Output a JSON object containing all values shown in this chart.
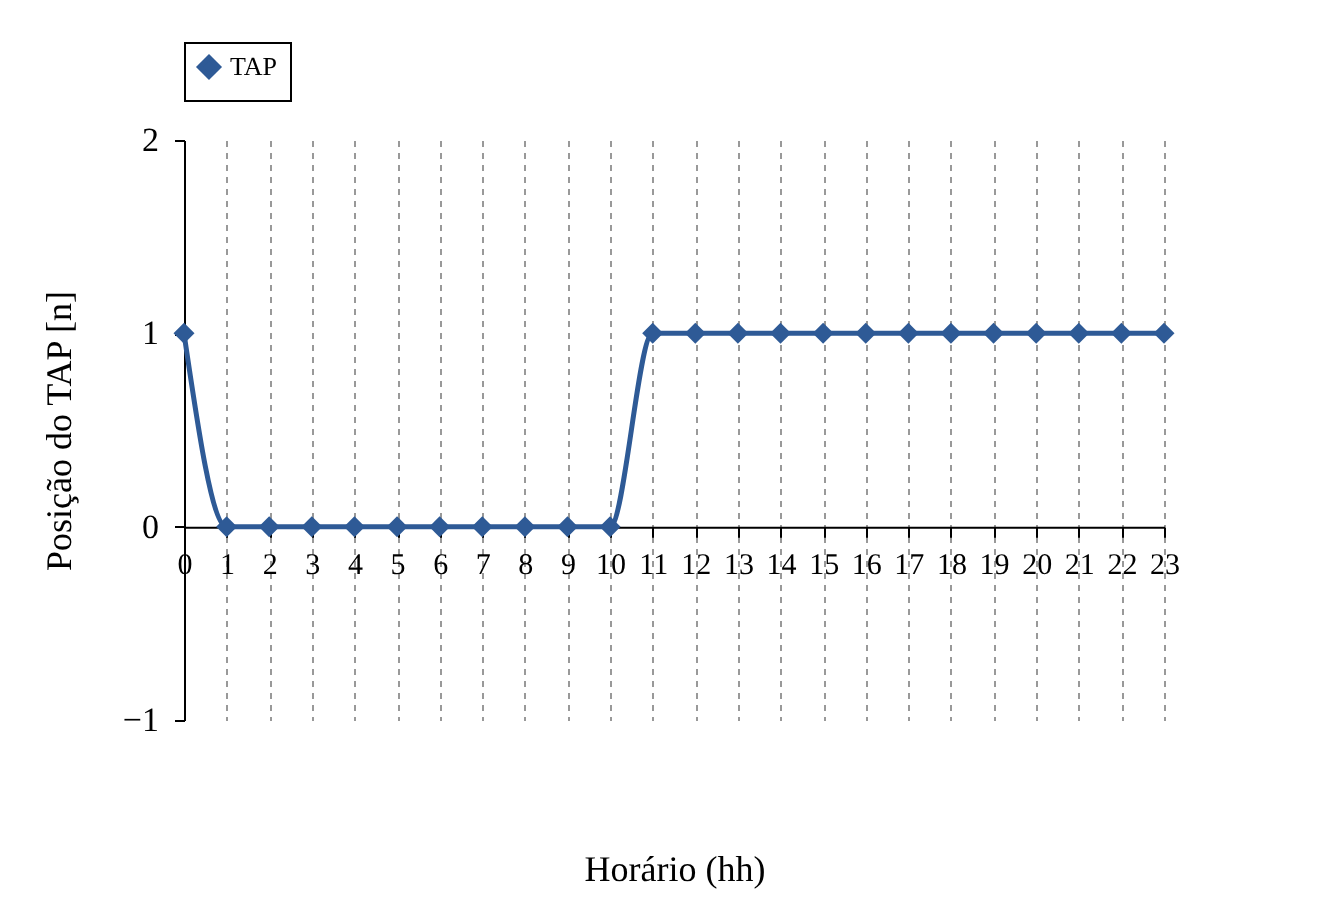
{
  "chart_data": {
    "type": "line",
    "xlabel": "Horário (hh)",
    "ylabel": "Posição do TAP [n]",
    "x": [
      0,
      1,
      2,
      3,
      4,
      5,
      6,
      7,
      8,
      9,
      10,
      11,
      12,
      13,
      14,
      15,
      16,
      17,
      18,
      19,
      20,
      21,
      22,
      23
    ],
    "series": [
      {
        "name": "TAP",
        "color": "#2e5a96",
        "values": [
          1,
          0,
          0,
          0,
          0,
          0,
          0,
          0,
          0,
          0,
          0,
          1,
          1,
          1,
          1,
          1,
          1,
          1,
          1,
          1,
          1,
          1,
          1,
          1
        ]
      }
    ],
    "xlim": [
      0,
      23
    ],
    "xticks": [
      0,
      1,
      2,
      3,
      4,
      5,
      6,
      7,
      8,
      9,
      10,
      11,
      12,
      13,
      14,
      15,
      16,
      17,
      18,
      19,
      20,
      21,
      22,
      23
    ],
    "ylim": [
      -1,
      2
    ],
    "yticks": [
      -1,
      0,
      1,
      2
    ],
    "grid": "x",
    "legend": "top",
    "marker": "diamond",
    "line_style": "solid"
  }
}
